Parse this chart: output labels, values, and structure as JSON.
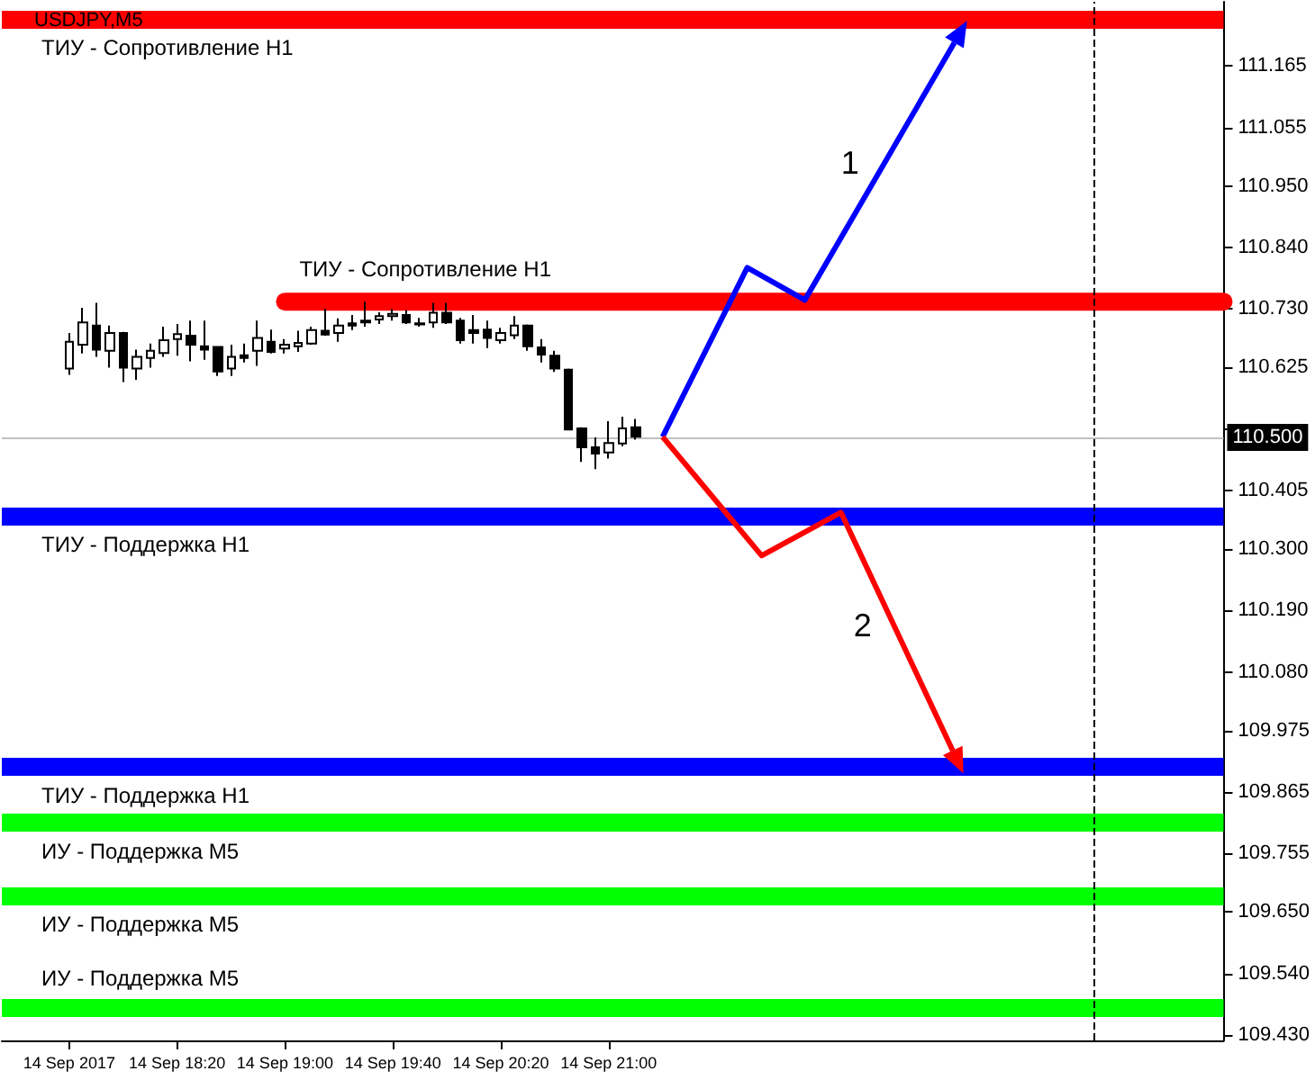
{
  "chart_data": {
    "type": "candlestick",
    "title": "USDJPY,M5",
    "xlim": [
      "2017-09-14T17:15",
      "2017-09-15T00:48"
    ],
    "xticks": [
      {
        "value": "2017-09-14T17:40",
        "label": "14 Sep 2017"
      },
      {
        "value": "2017-09-14T18:20",
        "label": "14 Sep 18:20"
      },
      {
        "value": "2017-09-14T19:00",
        "label": "14 Sep 19:00"
      },
      {
        "value": "2017-09-14T19:40",
        "label": "14 Sep 19:40"
      },
      {
        "value": "2017-09-14T20:20",
        "label": "14 Sep 20:20"
      },
      {
        "value": "2017-09-14T21:00",
        "label": "14 Sep 21:00"
      }
    ],
    "ylim": [
      109.42,
      111.28
    ],
    "yticks": [
      {
        "value": 109.43,
        "label": "109.430"
      },
      {
        "value": 109.54,
        "label": "109.540"
      },
      {
        "value": 109.65,
        "label": "109.650"
      },
      {
        "value": 109.755,
        "label": "109.755"
      },
      {
        "value": 109.865,
        "label": "109.865"
      },
      {
        "value": 109.975,
        "label": "109.975"
      },
      {
        "value": 110.08,
        "label": "110.080"
      },
      {
        "value": 110.19,
        "label": "110.190"
      },
      {
        "value": 110.3,
        "label": "110.300"
      },
      {
        "value": 110.405,
        "label": "110.405"
      },
      {
        "value": 110.515,
        "label": null
      },
      {
        "value": 110.625,
        "label": "110.625"
      },
      {
        "value": 110.73,
        "label": "110.730"
      },
      {
        "value": 110.84,
        "label": "110.840"
      },
      {
        "value": 110.95,
        "label": "110.950"
      },
      {
        "value": 111.055,
        "label": "111.055"
      },
      {
        "value": 111.165,
        "label": "111.165"
      }
    ],
    "grid": false,
    "legend": false,
    "series": [
      {
        "color": "#000000",
        "x": [
          "2017-09-14T17:40",
          "2017-09-14T17:45",
          "2017-09-14T17:50",
          "2017-09-14T17:55",
          "2017-09-14T18:00",
          "2017-09-14T18:05",
          "2017-09-14T18:10",
          "2017-09-14T18:15",
          "2017-09-14T18:20",
          "2017-09-14T18:25",
          "2017-09-14T18:30",
          "2017-09-14T18:35",
          "2017-09-14T18:40",
          "2017-09-14T18:45",
          "2017-09-14T18:50",
          "2017-09-14T18:55",
          "2017-09-14T19:00",
          "2017-09-14T19:05",
          "2017-09-14T19:10",
          "2017-09-14T19:15",
          "2017-09-14T19:20",
          "2017-09-14T19:25",
          "2017-09-14T19:30",
          "2017-09-14T19:35",
          "2017-09-14T19:40",
          "2017-09-14T19:45",
          "2017-09-14T19:50",
          "2017-09-14T19:55",
          "2017-09-14T20:00",
          "2017-09-14T20:05",
          "2017-09-14T20:10",
          "2017-09-14T20:15",
          "2017-09-14T20:20",
          "2017-09-14T20:25",
          "2017-09-14T20:30",
          "2017-09-14T20:35",
          "2017-09-14T20:40",
          "2017-09-14T20:45",
          "2017-09-14T20:50",
          "2017-09-14T20:55",
          "2017-09-14T21:00",
          "2017-09-14T21:05",
          "2017-09-14T21:10"
        ],
        "ohlc": [
          [
            110.623,
            110.687,
            110.612,
            110.671
          ],
          [
            110.666,
            110.732,
            110.65,
            110.706
          ],
          [
            110.7,
            110.741,
            110.644,
            110.657
          ],
          [
            110.655,
            110.7,
            110.625,
            110.687
          ],
          [
            110.687,
            110.689,
            110.599,
            110.625
          ],
          [
            110.623,
            110.657,
            110.603,
            110.644
          ],
          [
            110.642,
            110.668,
            110.625,
            110.655
          ],
          [
            110.651,
            110.698,
            110.644,
            110.674
          ],
          [
            110.676,
            110.703,
            110.646,
            110.685
          ],
          [
            110.682,
            110.709,
            110.636,
            110.666
          ],
          [
            110.663,
            110.709,
            110.639,
            110.657
          ],
          [
            110.662,
            110.663,
            110.61,
            110.618
          ],
          [
            110.623,
            110.666,
            110.61,
            110.644
          ],
          [
            110.647,
            110.668,
            110.634,
            110.642
          ],
          [
            110.655,
            110.709,
            110.628,
            110.678
          ],
          [
            110.671,
            110.693,
            110.65,
            110.653
          ],
          [
            110.659,
            110.676,
            110.65,
            110.666
          ],
          [
            110.663,
            110.691,
            110.653,
            110.669
          ],
          [
            110.668,
            110.698,
            110.666,
            110.692
          ],
          [
            110.691,
            110.73,
            110.682,
            110.684
          ],
          [
            110.687,
            110.713,
            110.671,
            110.7
          ],
          [
            110.704,
            110.719,
            110.692,
            110.7
          ],
          [
            110.709,
            110.743,
            110.698,
            110.706
          ],
          [
            110.711,
            110.724,
            110.703,
            110.717
          ],
          [
            110.717,
            110.73,
            110.709,
            110.721
          ],
          [
            110.719,
            110.728,
            110.703,
            110.706
          ],
          [
            110.704,
            110.714,
            110.698,
            110.702
          ],
          [
            110.706,
            110.741,
            110.696,
            110.723
          ],
          [
            110.723,
            110.741,
            110.703,
            110.706
          ],
          [
            110.709,
            110.714,
            110.668,
            110.674
          ],
          [
            110.692,
            110.719,
            110.668,
            110.687
          ],
          [
            110.693,
            110.709,
            110.66,
            110.678
          ],
          [
            110.674,
            110.696,
            110.668,
            110.687
          ],
          [
            110.683,
            110.717,
            110.676,
            110.7
          ],
          [
            110.7,
            110.702,
            110.655,
            110.663
          ],
          [
            110.661,
            110.676,
            110.634,
            110.648
          ],
          [
            110.646,
            110.655,
            110.617,
            110.623
          ],
          [
            110.621,
            110.623,
            110.513,
            110.514
          ],
          [
            110.516,
            110.518,
            110.456,
            110.482
          ],
          [
            110.482,
            110.5,
            110.443,
            110.471
          ],
          [
            110.473,
            110.529,
            110.462,
            110.49
          ],
          [
            110.489,
            110.537,
            110.484,
            110.516
          ],
          [
            110.518,
            110.533,
            110.496,
            110.501
          ]
        ]
      },
      {
        "type": "line",
        "name": "ТИУ - Сопротивление H1",
        "color": "#ff0000",
        "x": [
          "2017-09-14T19:00",
          "2017-09-15T00:48"
        ],
        "values": [
          110.743,
          110.743
        ]
      }
    ],
    "ref_lines": [
      {
        "axis": "y",
        "value": 111.25,
        "label": "ТИУ - Сопротивление H1",
        "color": "#ff0000"
      },
      {
        "axis": "y",
        "value": 110.5,
        "label": "110.500",
        "color": "#c0c0c0"
      },
      {
        "axis": "y",
        "value": 110.36,
        "label": "ТИУ - Поддержка H1",
        "color": "#0000ff"
      },
      {
        "axis": "y",
        "value": 109.91,
        "label": "ТИУ - Поддержка H1",
        "color": "#0000ff"
      },
      {
        "axis": "y",
        "value": 109.81,
        "label": "ИУ - Поддержка M5",
        "color": "#00ff00"
      },
      {
        "axis": "y",
        "value": 109.68,
        "label": "ИУ - Поддержка M5",
        "color": "#00ff00"
      },
      {
        "axis": "y",
        "value": 109.485,
        "label": "ИУ - Поддержка M5",
        "color": "#00ff00"
      },
      {
        "axis": "x",
        "value": "2017-09-15T00:00",
        "color": "#000000",
        "line_style": "dashed"
      }
    ],
    "annotations": [
      "1",
      "2"
    ]
  }
}
